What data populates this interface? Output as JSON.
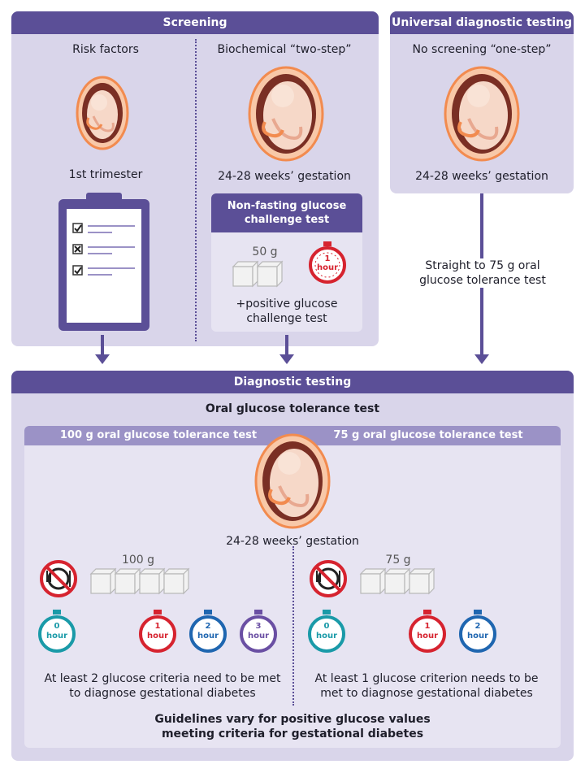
{
  "screening": {
    "title": "Screening",
    "risk_factors": "Risk factors",
    "first_trimester": "1st trimester",
    "two_step": "Biochemical “two-step”",
    "gestation": "24-28 weeks’ gestation",
    "challenge_title": "Non-fasting glucose challenge test",
    "challenge_amount": "50 g",
    "challenge_timer": "1",
    "challenge_timer_unit": "hour",
    "positive": "+positive glucose challenge test"
  },
  "universal": {
    "title": "Universal diagnostic testing",
    "one_step": "No screening “one-step”",
    "gestation": "24-28 weeks’ gestation",
    "straight": "Straight to 75 g oral glucose tolerance test"
  },
  "diagnostic": {
    "title": "Diagnostic testing",
    "subtitle": "Oral glucose tolerance test",
    "left_title": "100 g oral glucose tolerance test",
    "right_title": "75 g oral glucose tolerance test",
    "gestation": "24-28 weeks’ gestation",
    "left_amount": "100 g",
    "right_amount": "75 g",
    "hour_unit": "hour",
    "left_timers": [
      "0",
      "1",
      "2",
      "3"
    ],
    "right_timers": [
      "0",
      "1",
      "2"
    ],
    "left_criteria": "At least 2 glucose criteria need to be met to diagnose gestational diabetes",
    "right_criteria": "At least 1 glucose criterion needs to be met to diagnose gestational diabetes",
    "footer": "Guidelines vary for positive glucose values meeting criteria for gestational diabetes"
  },
  "colors": {
    "panel": "#d9d5ea",
    "header": "#5b4f97",
    "teal": "#1a9aa8",
    "red": "#d6232f",
    "blue": "#1f66b0",
    "purple": "#6a4fa3",
    "orange": "#f28b4f"
  },
  "icons": [
    "fetus-icon",
    "clipboard-icon",
    "sugar-cube-icon",
    "timer-icon",
    "no-eating-icon"
  ]
}
